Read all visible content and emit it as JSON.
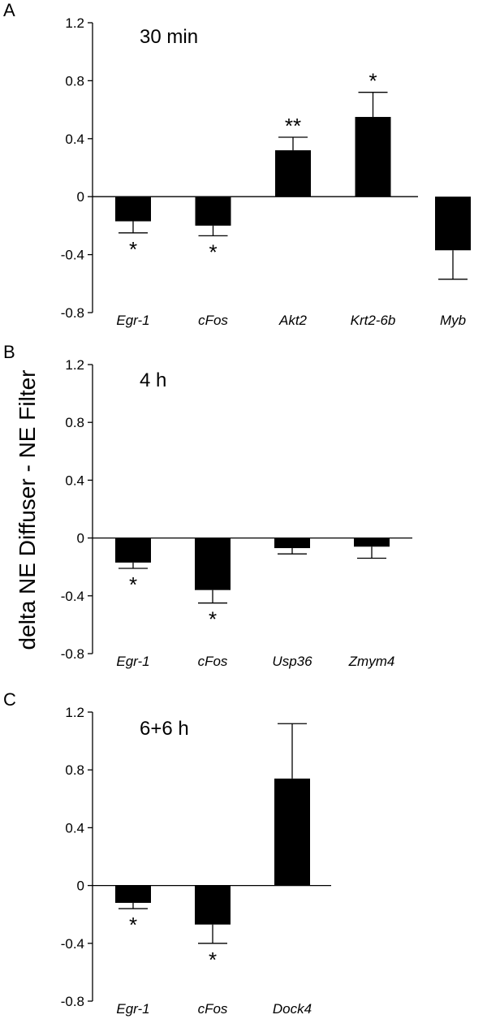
{
  "ylabel": "delta NE Diffuser - NE Filter",
  "chart_data": [
    {
      "type": "bar",
      "panel": "A",
      "title": "30 min",
      "ylim": [
        -0.8,
        1.2
      ],
      "yticks": [
        "-0.8",
        "-0.4",
        "0",
        "0.4",
        "0.8",
        "1.2"
      ],
      "categories": [
        "Egr-1",
        "cFos",
        "Akt2",
        "Krt2-6b",
        "Myb"
      ],
      "values": [
        -0.17,
        -0.2,
        0.32,
        0.55,
        -0.37
      ],
      "errors": [
        0.08,
        0.07,
        0.09,
        0.17,
        0.2
      ],
      "significance": [
        "*",
        "*",
        "**",
        "*",
        ""
      ]
    },
    {
      "type": "bar",
      "panel": "B",
      "title": "4 h",
      "ylim": [
        -0.8,
        1.2
      ],
      "yticks": [
        "-0.8",
        "-0.4",
        "0",
        "0.4",
        "0.8",
        "1.2"
      ],
      "categories": [
        "Egr-1",
        "cFos",
        "Usp36",
        "Zmym4"
      ],
      "values": [
        -0.17,
        -0.36,
        -0.07,
        -0.06
      ],
      "errors": [
        0.04,
        0.09,
        0.04,
        0.08
      ],
      "significance": [
        "*",
        "*",
        "",
        ""
      ]
    },
    {
      "type": "bar",
      "panel": "C",
      "title": "6+6 h",
      "ylim": [
        -0.8,
        1.2
      ],
      "yticks": [
        "-0.8",
        "-0.4",
        "0",
        "0.4",
        "0.8",
        "1.2"
      ],
      "categories": [
        "Egr-1",
        "cFos",
        "Dock4"
      ],
      "values": [
        -0.12,
        -0.27,
        0.74
      ],
      "errors": [
        0.04,
        0.13,
        0.38
      ],
      "significance": [
        "*",
        "*",
        ""
      ]
    }
  ]
}
